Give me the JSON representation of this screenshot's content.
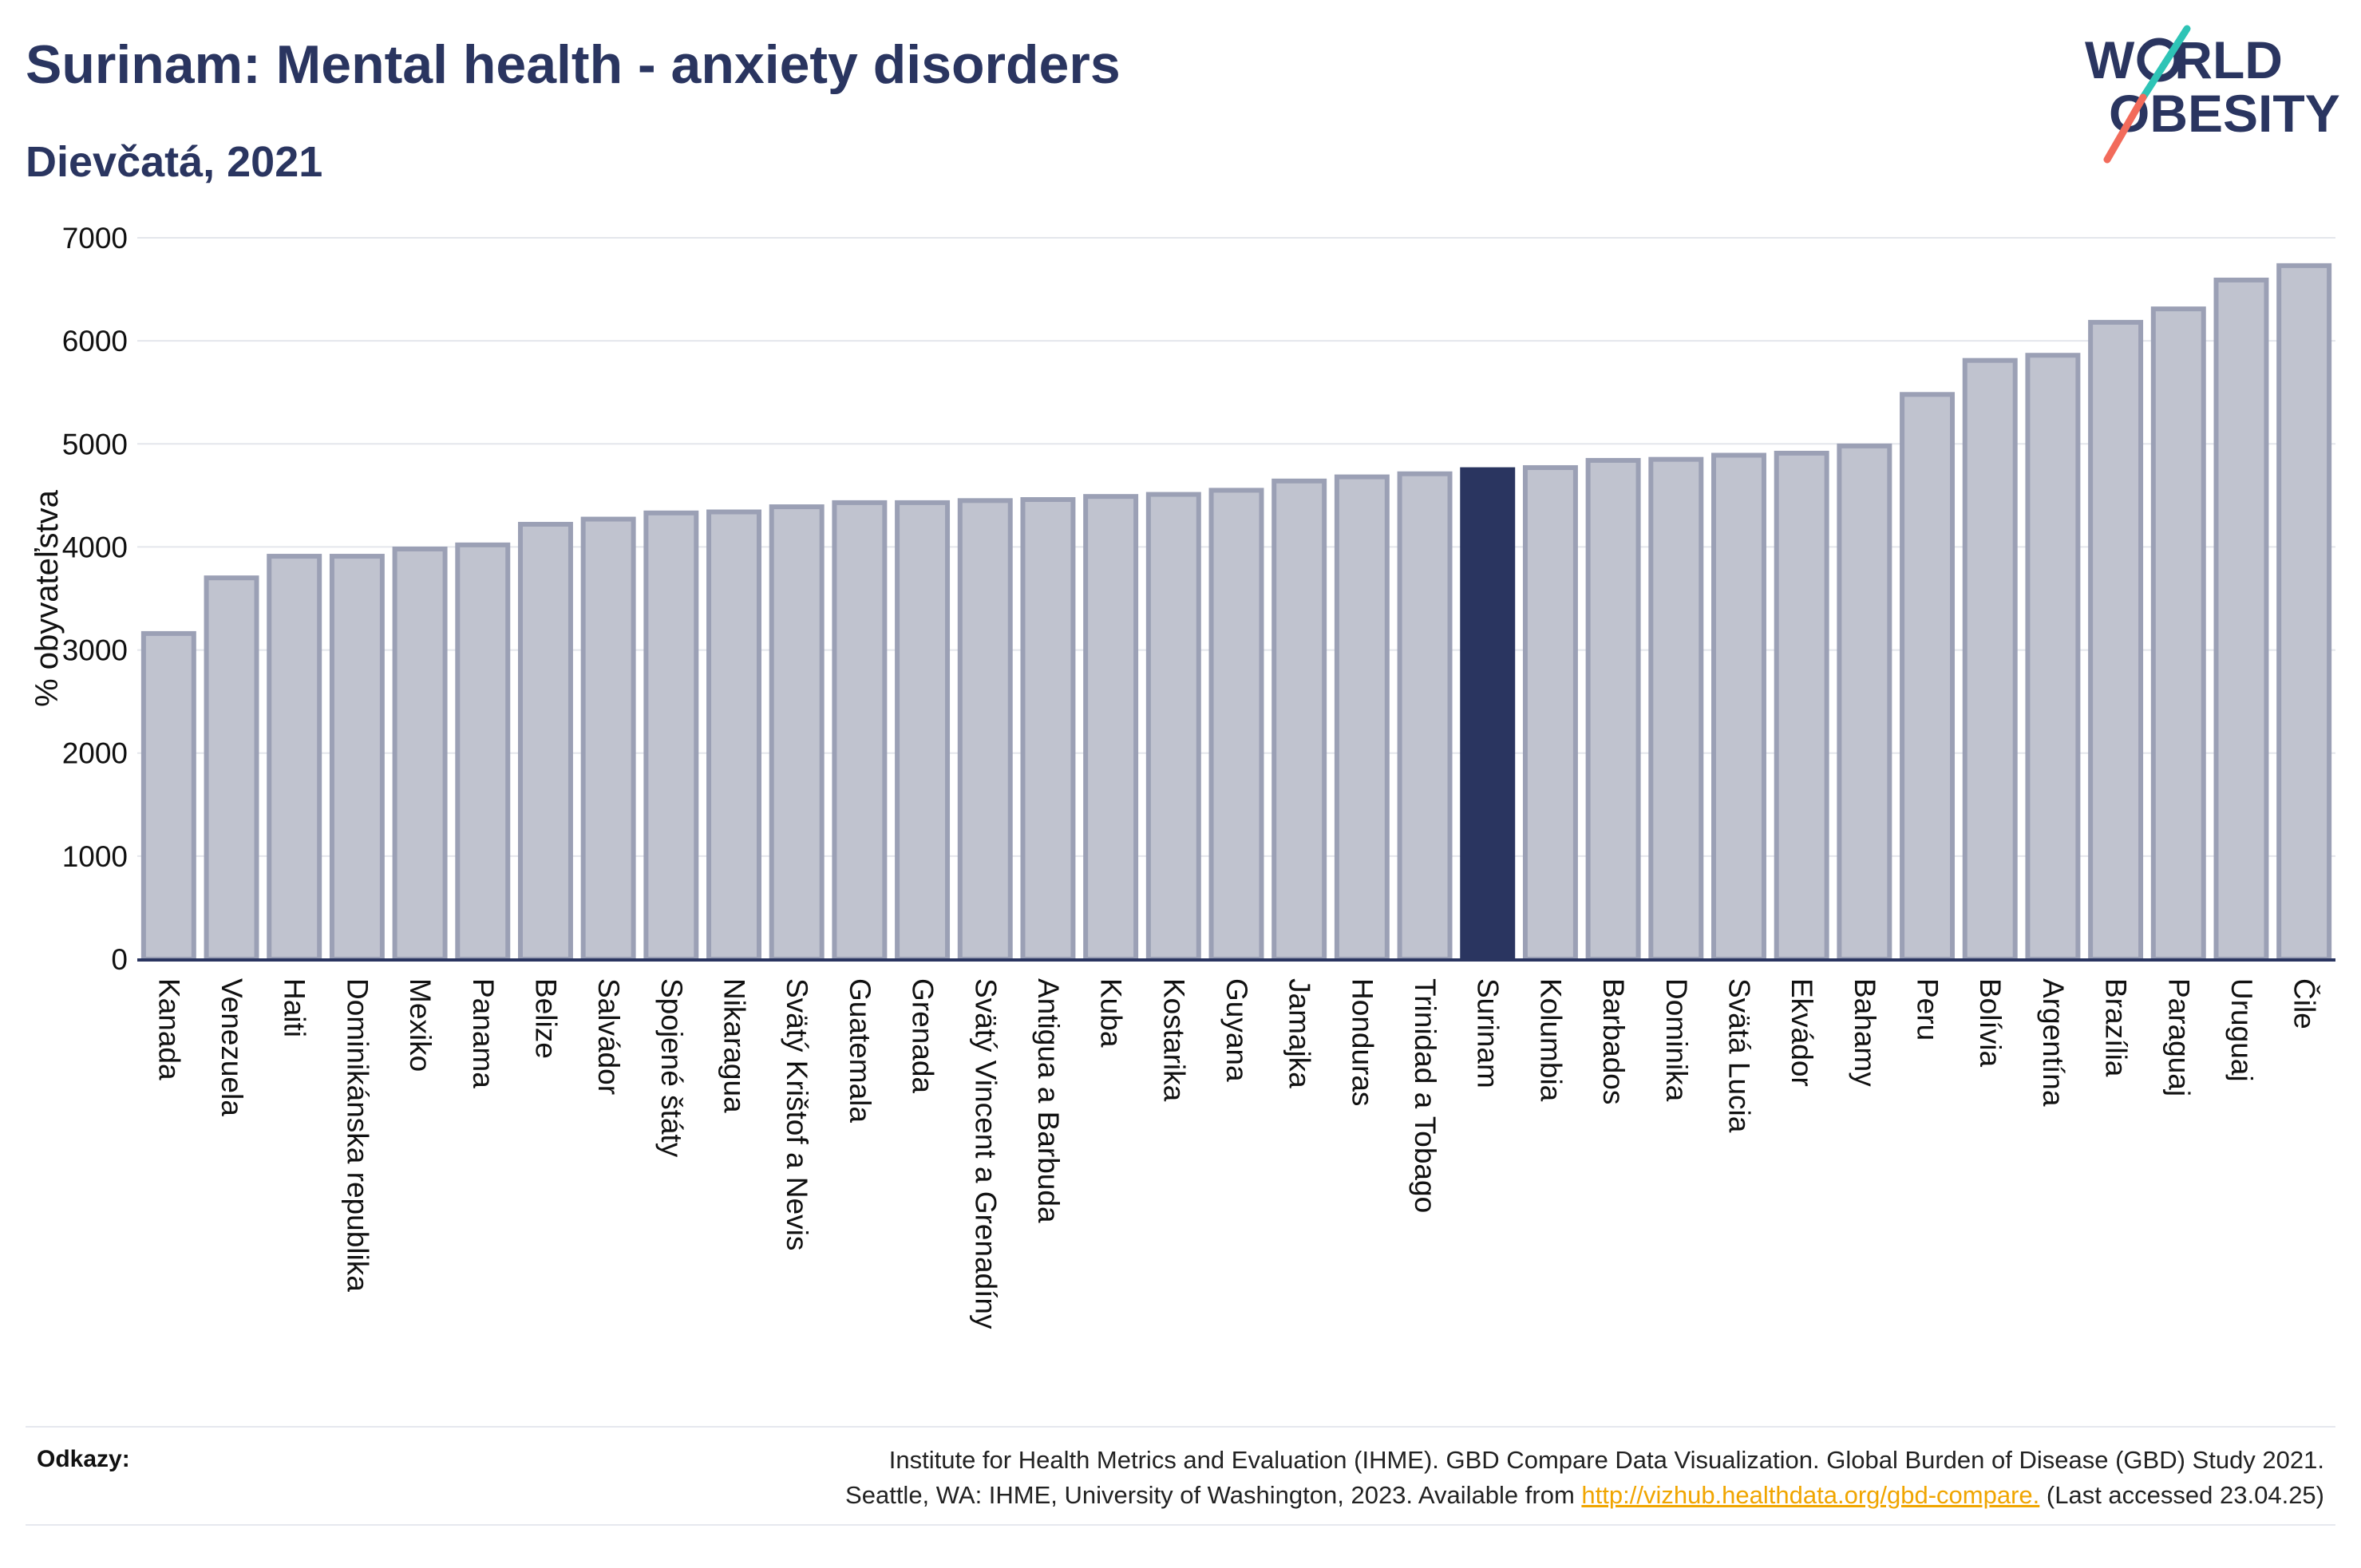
{
  "header": {
    "title": "Surinam: Mental health - anxiety disorders",
    "subtitle": "Dievčatá, 2021"
  },
  "logo": {
    "line1": "W",
    "line1b": "RLD",
    "line2": "O",
    "line2b": "BESITY",
    "colors": {
      "text": "#2a3560",
      "slash_teal": "#2ec4b6",
      "slash_coral": "#f26b5b"
    }
  },
  "references": {
    "label": "Odkazy:",
    "line1": "Institute for Health Metrics and Evaluation (IHME). GBD Compare Data Visualization. Global Burden of Disease (GBD) Study 2021.",
    "line2_prefix": "Seattle, WA: IHME, University of Washington, 2023. Available from ",
    "link": "http://vizhub.healthdata.org/gbd-compare.",
    "line2_suffix": " (Last accessed 23.04.25)"
  },
  "chart_data": {
    "type": "bar",
    "ylabel": "% obyvateľstva",
    "ylim": [
      0,
      7000
    ],
    "yticks": [
      0,
      1000,
      2000,
      3000,
      4000,
      5000,
      6000,
      7000
    ],
    "grid": true,
    "highlight": "Surinam",
    "colors": {
      "bar": "#c0c3cf",
      "bar_edge": "#9ba0b5",
      "highlight": "#2a3560",
      "grid": "#e4e6ec",
      "axis": "#2a3560"
    },
    "categories": [
      "Kanada",
      "Venezuela",
      "Haiti",
      "Dominikánska republika",
      "Mexiko",
      "Panama",
      "Belize",
      "Salvádor",
      "Spojené štáty",
      "Nikaragua",
      "Svätý Krištof a Nevis",
      "Guatemala",
      "Grenada",
      "Svätý Vincent a Grenadíny",
      "Antigua a Barbuda",
      "Kuba",
      "Kostarika",
      "Guyana",
      "Jamajka",
      "Honduras",
      "Trinidad a Tobago",
      "Surinam",
      "Kolumbia",
      "Barbados",
      "Dominika",
      "Svätá Lucia",
      "Ekvádor",
      "Bahamy",
      "Peru",
      "Bolívia",
      "Argentína",
      "Brazília",
      "Paraguaj",
      "Uruguaj",
      "Čile"
    ],
    "values": [
      3160,
      3700,
      3910,
      3910,
      3980,
      4020,
      4220,
      4270,
      4330,
      4340,
      4390,
      4430,
      4430,
      4450,
      4460,
      4490,
      4510,
      4550,
      4640,
      4680,
      4710,
      4750,
      4770,
      4840,
      4850,
      4890,
      4910,
      4980,
      5480,
      5810,
      5860,
      6180,
      6310,
      6590,
      6730
    ]
  }
}
